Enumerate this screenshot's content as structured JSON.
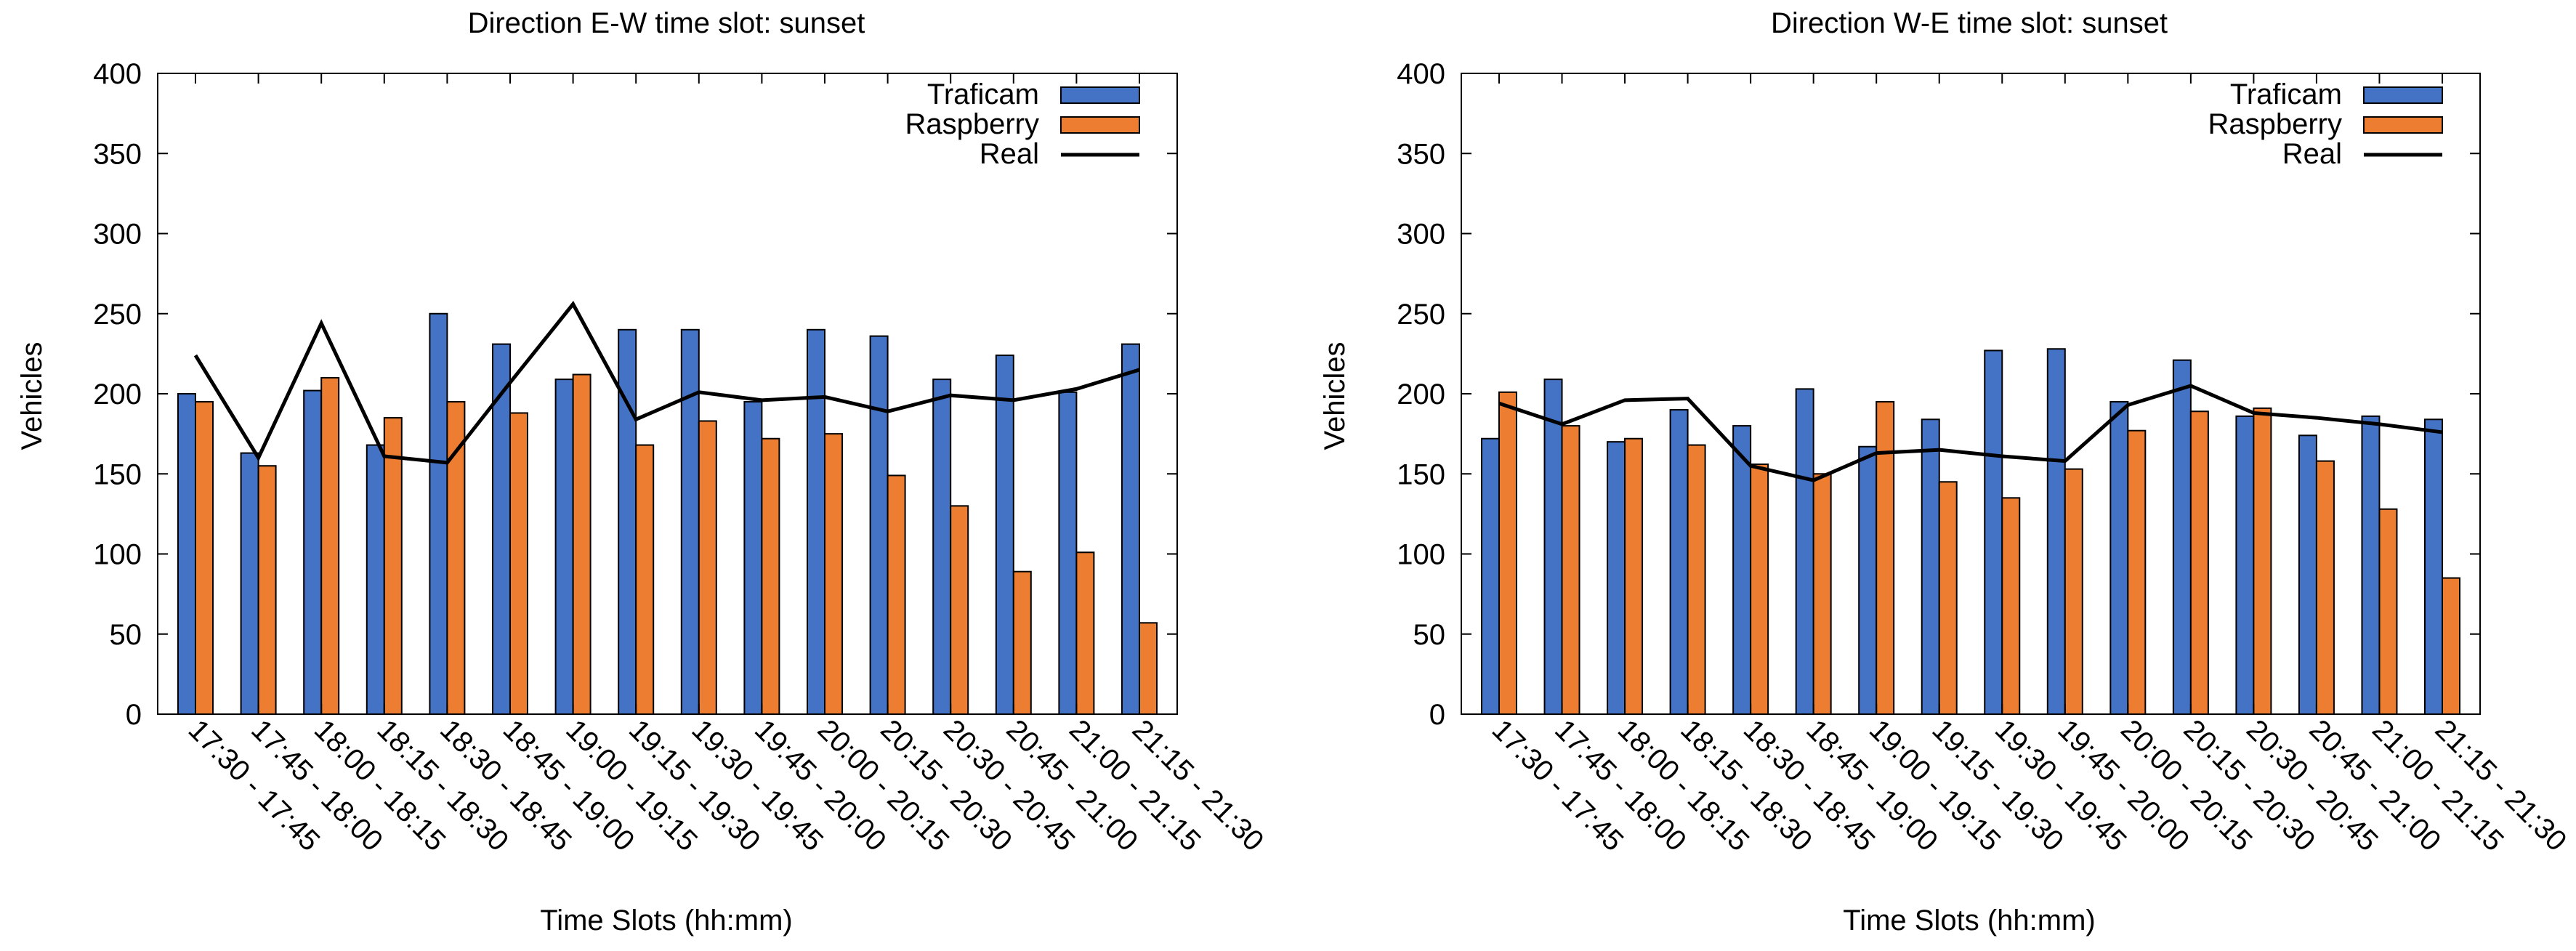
{
  "colors": {
    "traficam": "#4472c4",
    "raspberry": "#ed7d31",
    "real": "#000000",
    "axis": "#000000"
  },
  "chart_data": [
    {
      "type": "bar",
      "title": "Direction E-W time slot: sunset",
      "xlabel": "Time Slots (hh:mm)",
      "ylabel": "Vehicles",
      "ylim": [
        0,
        400
      ],
      "yticks": [
        0,
        50,
        100,
        150,
        200,
        250,
        300,
        350,
        400
      ],
      "grid": false,
      "legend_position": "top-right",
      "categories": [
        "17:30 - 17:45",
        "17:45 - 18:00",
        "18:00 - 18:15",
        "18:15 - 18:30",
        "18:30 - 18:45",
        "18:45 - 19:00",
        "19:00 - 19:15",
        "19:15 - 19:30",
        "19:30 - 19:45",
        "19:45 - 20:00",
        "20:00 - 20:15",
        "20:15 - 20:30",
        "20:30 - 20:45",
        "20:45 - 21:00",
        "21:00 - 21:15",
        "21:15 - 21:30"
      ],
      "series": [
        {
          "name": "Traficam",
          "kind": "bar",
          "values": [
            200,
            163,
            202,
            168,
            250,
            231,
            209,
            240,
            240,
            195,
            240,
            236,
            209,
            224,
            201,
            231
          ]
        },
        {
          "name": "Raspberry",
          "kind": "bar",
          "values": [
            195,
            155,
            210,
            185,
            195,
            188,
            212,
            168,
            183,
            172,
            175,
            149,
            130,
            89,
            101,
            57
          ]
        },
        {
          "name": "Real",
          "kind": "line",
          "values": [
            224,
            160,
            244,
            161,
            157,
            207,
            256,
            184,
            201,
            196,
            198,
            189,
            199,
            196,
            203,
            215
          ]
        }
      ]
    },
    {
      "type": "bar",
      "title": "Direction W-E time slot: sunset",
      "xlabel": "Time Slots (hh:mm)",
      "ylabel": "Vehicles",
      "ylim": [
        0,
        400
      ],
      "yticks": [
        0,
        50,
        100,
        150,
        200,
        250,
        300,
        350,
        400
      ],
      "grid": false,
      "legend_position": "top-right",
      "categories": [
        "17:30 - 17:45",
        "17:45 - 18:00",
        "18:00 - 18:15",
        "18:15 - 18:30",
        "18:30 - 18:45",
        "18:45 - 19:00",
        "19:00 - 19:15",
        "19:15 - 19:30",
        "19:30 - 19:45",
        "19:45 - 20:00",
        "20:00 - 20:15",
        "20:15 - 20:30",
        "20:30 - 20:45",
        "20:45 - 21:00",
        "21:00 - 21:15",
        "21:15 - 21:30"
      ],
      "series": [
        {
          "name": "Traficam",
          "kind": "bar",
          "values": [
            172,
            209,
            170,
            190,
            180,
            203,
            167,
            184,
            227,
            228,
            195,
            221,
            186,
            174,
            186,
            184
          ]
        },
        {
          "name": "Raspberry",
          "kind": "bar",
          "values": [
            201,
            180,
            172,
            168,
            156,
            150,
            195,
            145,
            135,
            153,
            177,
            189,
            191,
            158,
            128,
            85
          ]
        },
        {
          "name": "Real",
          "kind": "line",
          "values": [
            194,
            181,
            196,
            197,
            155,
            146,
            163,
            165,
            161,
            158,
            193,
            205,
            188,
            185,
            181,
            176
          ]
        }
      ]
    }
  ]
}
